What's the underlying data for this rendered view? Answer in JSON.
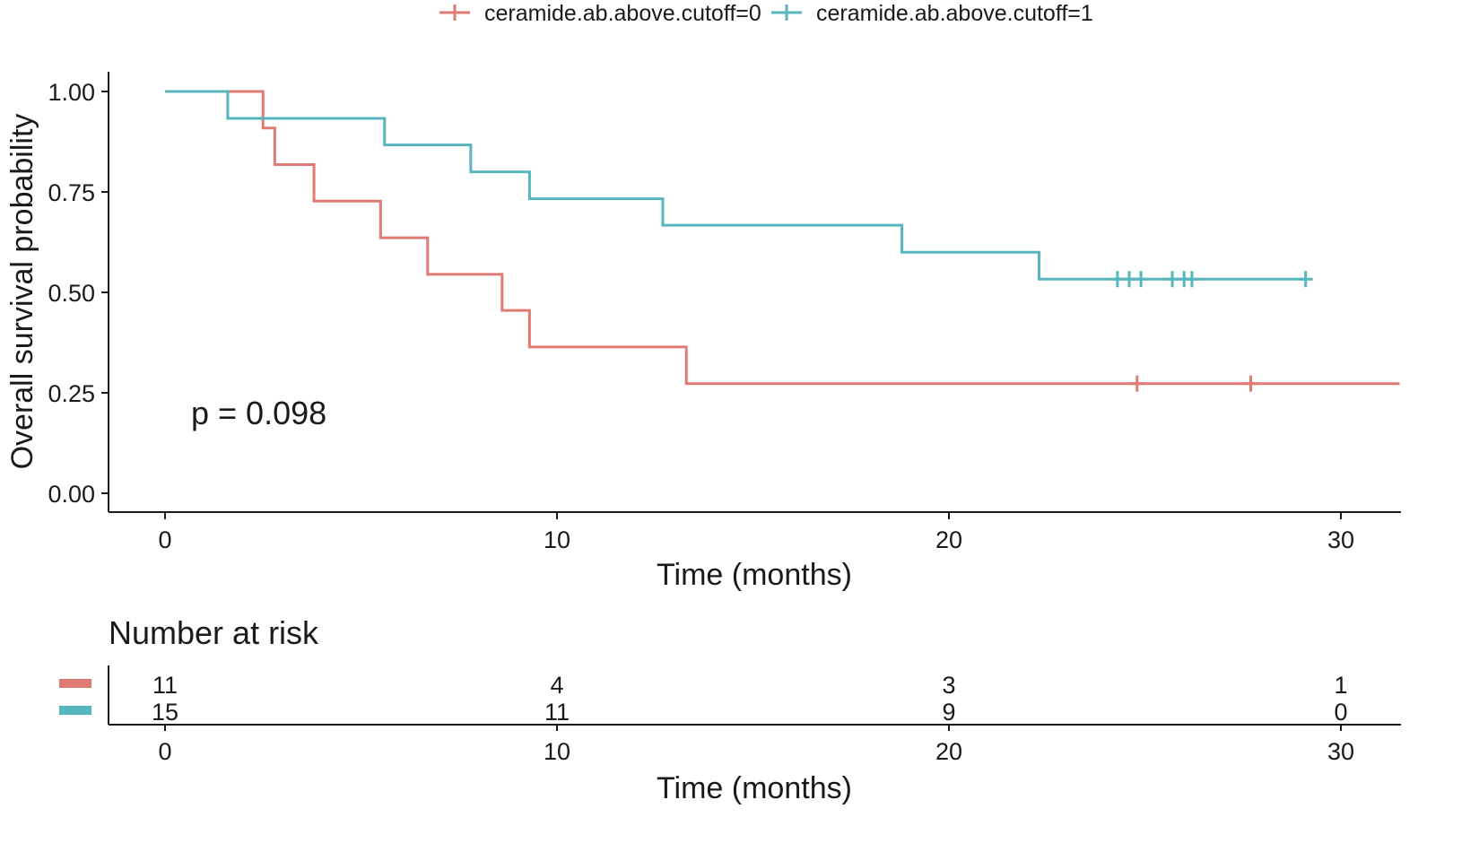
{
  "chart_data": {
    "type": "line",
    "subtype": "kaplan-meier",
    "title": "",
    "xlabel": "Time (months)",
    "ylabel": "Overall survival probability",
    "xlim": [
      -1.5,
      31.5
    ],
    "ylim": [
      -0.05,
      1.05
    ],
    "xticks": [
      0,
      10,
      20,
      30
    ],
    "xtick_labels": [
      "0",
      "10",
      "20",
      "30"
    ],
    "yticks": [
      0,
      0.25,
      0.5,
      0.75,
      1.0
    ],
    "ytick_labels": [
      "0.00",
      "0.25",
      "0.50",
      "0.75",
      "1.00"
    ],
    "grid": false,
    "legend_position": "top",
    "annotation": "p = 0.098",
    "series": [
      {
        "name": "ceramide.ab.above.cutoff=0",
        "color": "#E07B73",
        "steps": [
          [
            0,
            1.0
          ],
          [
            2.5,
            0.909
          ],
          [
            2.8,
            0.818
          ],
          [
            3.8,
            0.727
          ],
          [
            5.5,
            0.636
          ],
          [
            6.7,
            0.545
          ],
          [
            8.6,
            0.455
          ],
          [
            9.3,
            0.364
          ],
          [
            13.3,
            0.273
          ]
        ],
        "end_x": 31.5,
        "censored": [
          [
            24.8,
            0.273
          ],
          [
            27.7,
            0.273
          ]
        ]
      },
      {
        "name": "ceramide.ab.above.cutoff=1",
        "color": "#56B6BD",
        "steps": [
          [
            0,
            1.0
          ],
          [
            1.6,
            0.933
          ],
          [
            5.6,
            0.867
          ],
          [
            7.8,
            0.8
          ],
          [
            9.3,
            0.733
          ],
          [
            12.7,
            0.667
          ],
          [
            18.8,
            0.6
          ],
          [
            22.3,
            0.533
          ]
        ],
        "end_x": 29.1,
        "censored": [
          [
            24.3,
            0.533
          ],
          [
            24.6,
            0.533
          ],
          [
            24.9,
            0.533
          ],
          [
            25.7,
            0.533
          ],
          [
            26.0,
            0.533
          ],
          [
            26.2,
            0.533
          ],
          [
            29.1,
            0.533
          ]
        ]
      }
    ],
    "risk_table": {
      "title": "Number at risk",
      "times": [
        0,
        10,
        20,
        30
      ],
      "tick_labels": [
        "0",
        "10",
        "20",
        "30"
      ],
      "xlabel": "Time (months)",
      "rows": [
        {
          "color": "#E07B73",
          "counts": [
            "11",
            "4",
            "3",
            "1"
          ]
        },
        {
          "color": "#56B6BD",
          "counts": [
            "15",
            "11",
            "9",
            "0"
          ]
        }
      ]
    }
  }
}
